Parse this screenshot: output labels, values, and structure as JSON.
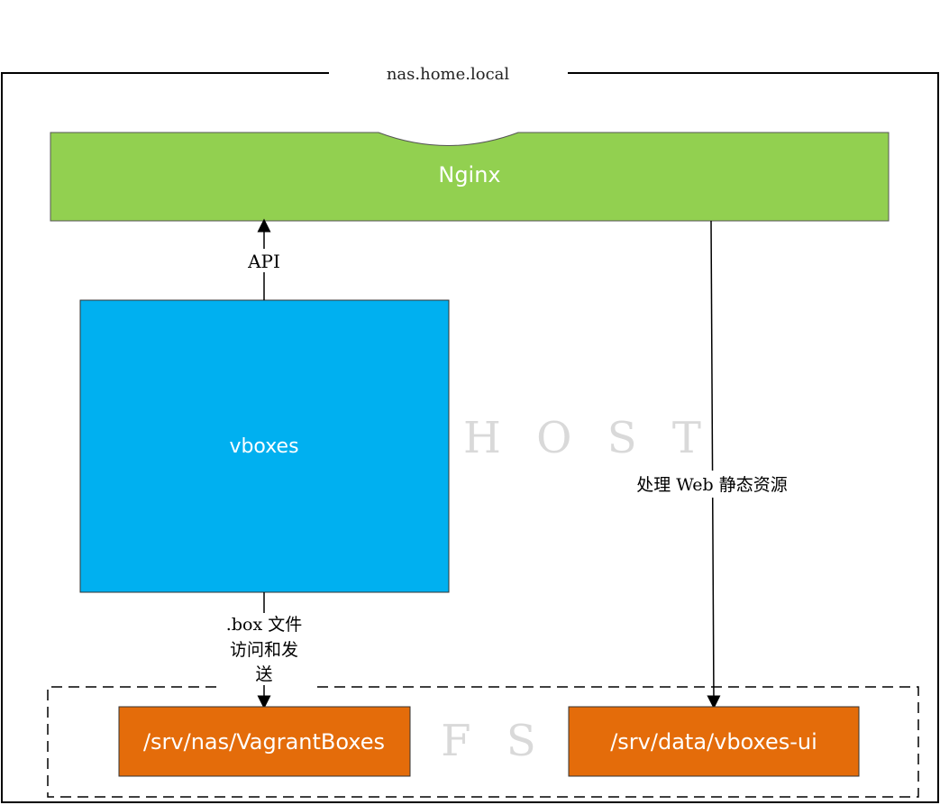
{
  "host": {
    "title": "nas.home.local",
    "watermark": "H O S T"
  },
  "nginx": {
    "label": "Nginx",
    "color": "#92d050"
  },
  "vboxes": {
    "label": "vboxes",
    "color": "#00b0f0"
  },
  "edges": {
    "api": "API",
    "static": "处理 Web 静态资源",
    "box_line1": ".box 文件",
    "box_line2": "访问和发",
    "box_line3": "送"
  },
  "fs": {
    "watermark": "F S",
    "boxes_color": "#e46c0a",
    "vagrant": "/srv/nas/VagrantBoxes",
    "ui": "/srv/data/vboxes-ui"
  }
}
